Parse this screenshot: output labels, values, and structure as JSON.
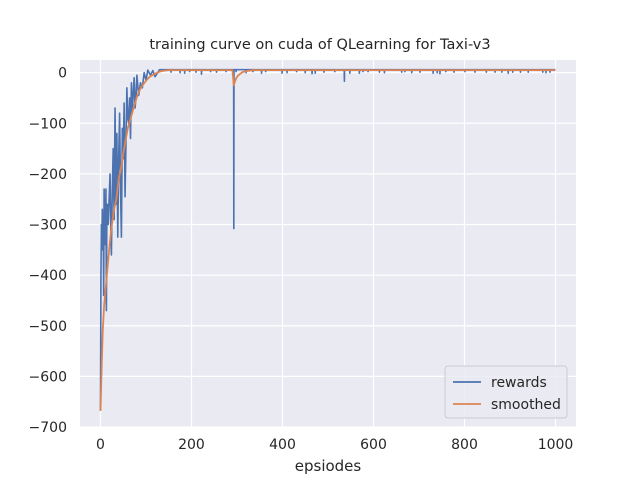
{
  "chart_data": {
    "type": "line",
    "title": "training curve on cuda of QLearning for Taxi-v3",
    "xlabel": "epsiodes",
    "ylabel": "",
    "xlim": [
      -45,
      1045
    ],
    "ylim": [
      -700,
      25
    ],
    "x_ticks": [
      0,
      200,
      400,
      600,
      800,
      1000
    ],
    "y_ticks": [
      0,
      -100,
      -200,
      -300,
      -400,
      -500,
      -600,
      -700
    ],
    "grid": true,
    "legend_position": "lower-right",
    "background_color": "#eaeaf2",
    "grid_color": "#ffffff",
    "series": [
      {
        "name": "rewards",
        "color": "#4c72b0",
        "description_points": "episode reward per episode"
      },
      {
        "name": "smoothed",
        "color": "#dd8452"
      }
    ],
    "rewards_anchor_points": [
      [
        0,
        -668
      ],
      [
        1,
        -400
      ],
      [
        2,
        -300
      ],
      [
        3,
        -350
      ],
      [
        4,
        -270
      ],
      [
        5,
        -330
      ],
      [
        6,
        -290
      ],
      [
        7,
        -440
      ],
      [
        8,
        -230
      ],
      [
        9,
        -300
      ],
      [
        10,
        -280
      ],
      [
        11,
        -340
      ],
      [
        12,
        -230
      ],
      [
        13,
        -470
      ],
      [
        14,
        -280
      ],
      [
        15,
        -260
      ],
      [
        17,
        -300
      ],
      [
        19,
        -250
      ],
      [
        21,
        -200
      ],
      [
        23,
        -320
      ],
      [
        24,
        -360
      ],
      [
        26,
        -230
      ],
      [
        28,
        -150
      ],
      [
        30,
        -290
      ],
      [
        32,
        -70
      ],
      [
        34,
        -260
      ],
      [
        36,
        -120
      ],
      [
        38,
        -325
      ],
      [
        40,
        -170
      ],
      [
        42,
        -80
      ],
      [
        44,
        -230
      ],
      [
        46,
        -325
      ],
      [
        48,
        -110
      ],
      [
        50,
        -170
      ],
      [
        52,
        -60
      ],
      [
        54,
        -245
      ],
      [
        56,
        -140
      ],
      [
        58,
        -30
      ],
      [
        60,
        -90
      ],
      [
        62,
        -100
      ],
      [
        64,
        -50
      ],
      [
        66,
        -130
      ],
      [
        68,
        -20
      ],
      [
        70,
        -80
      ],
      [
        72,
        -40
      ],
      [
        74,
        -10
      ],
      [
        76,
        -70
      ],
      [
        78,
        -50
      ],
      [
        80,
        -5
      ],
      [
        84,
        -45
      ],
      [
        88,
        -20
      ],
      [
        92,
        -30
      ],
      [
        96,
        0
      ],
      [
        100,
        -15
      ],
      [
        104,
        5
      ],
      [
        110,
        -5
      ],
      [
        115,
        4
      ],
      [
        120,
        -8
      ],
      [
        130,
        6
      ]
    ],
    "rewards_plateau_value": 6,
    "rewards_outliers": [
      [
        155,
        1
      ],
      [
        175,
        0
      ],
      [
        185,
        -1
      ],
      [
        196,
        2
      ],
      [
        210,
        1
      ],
      [
        222,
        -3
      ],
      [
        242,
        2
      ],
      [
        255,
        1
      ],
      [
        276,
        2
      ],
      [
        293,
        -308
      ],
      [
        298,
        2
      ],
      [
        320,
        0
      ],
      [
        335,
        2
      ],
      [
        354,
        -1
      ],
      [
        363,
        2
      ],
      [
        399,
        -1
      ],
      [
        410,
        0
      ],
      [
        431,
        2
      ],
      [
        450,
        0
      ],
      [
        465,
        -2
      ],
      [
        472,
        -1
      ],
      [
        491,
        1
      ],
      [
        515,
        2
      ],
      [
        536,
        -17
      ],
      [
        548,
        -1
      ],
      [
        569,
        -1
      ],
      [
        577,
        2
      ],
      [
        588,
        2
      ],
      [
        613,
        1
      ],
      [
        624,
        0
      ],
      [
        662,
        1
      ],
      [
        669,
        2
      ],
      [
        684,
        0
      ],
      [
        702,
        1
      ],
      [
        731,
        -1
      ],
      [
        740,
        0
      ],
      [
        746,
        -2
      ],
      [
        759,
        2
      ],
      [
        777,
        1
      ],
      [
        801,
        2
      ],
      [
        823,
        1
      ],
      [
        848,
        1
      ],
      [
        867,
        1
      ],
      [
        882,
        1
      ],
      [
        896,
        -1
      ],
      [
        906,
        1
      ],
      [
        923,
        1
      ],
      [
        940,
        1
      ],
      [
        972,
        1
      ],
      [
        979,
        0
      ],
      [
        988,
        1
      ]
    ],
    "smoothed_anchor_points": [
      [
        0,
        -668
      ],
      [
        3,
        -570
      ],
      [
        5,
        -510
      ],
      [
        8,
        -460
      ],
      [
        12,
        -420
      ],
      [
        16,
        -380
      ],
      [
        20,
        -340
      ],
      [
        25,
        -300
      ],
      [
        30,
        -270
      ],
      [
        35,
        -250
      ],
      [
        40,
        -210
      ],
      [
        45,
        -190
      ],
      [
        50,
        -160
      ],
      [
        55,
        -135
      ],
      [
        60,
        -110
      ],
      [
        65,
        -95
      ],
      [
        70,
        -78
      ],
      [
        75,
        -63
      ],
      [
        80,
        -48
      ],
      [
        85,
        -36
      ],
      [
        90,
        -28
      ],
      [
        95,
        -22
      ],
      [
        100,
        -16
      ],
      [
        105,
        -11
      ],
      [
        110,
        -7
      ],
      [
        120,
        -2
      ],
      [
        130,
        2
      ],
      [
        140,
        4
      ],
      [
        150,
        5
      ],
      [
        290,
        5
      ],
      [
        293,
        -25
      ],
      [
        296,
        -16
      ],
      [
        299,
        -10
      ],
      [
        302,
        -6
      ],
      [
        306,
        -3
      ],
      [
        312,
        1
      ],
      [
        320,
        3
      ],
      [
        335,
        5
      ],
      [
        1000,
        5
      ]
    ]
  }
}
